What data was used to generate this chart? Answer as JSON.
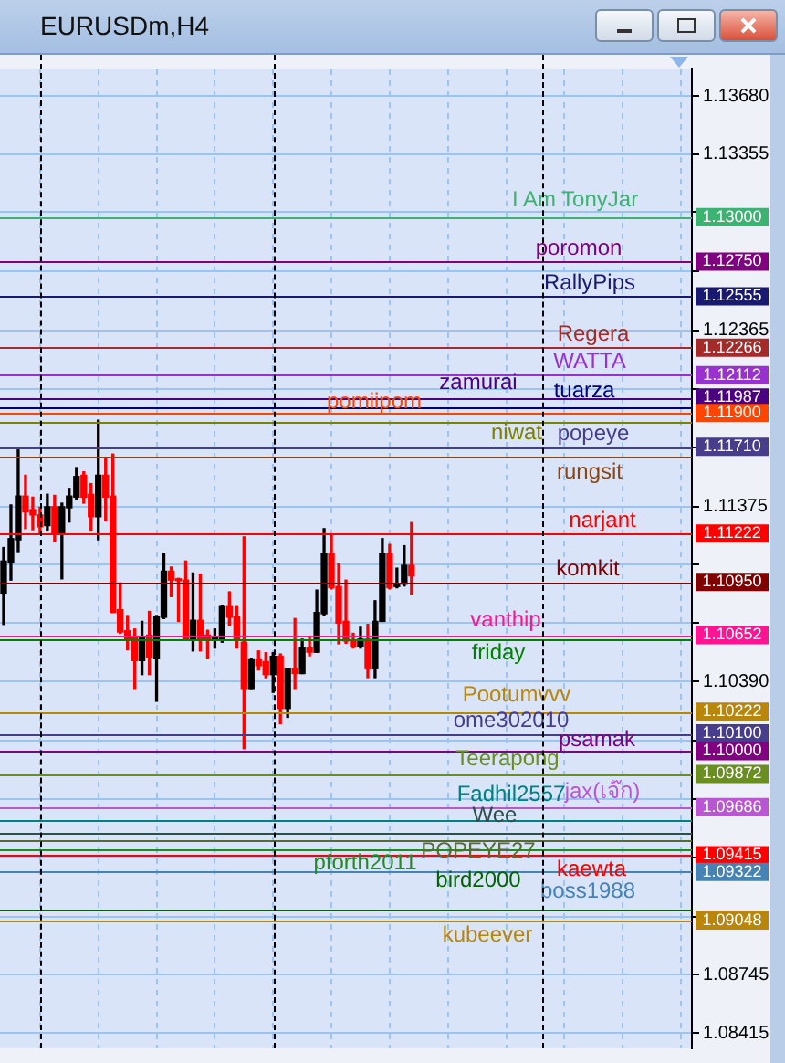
{
  "chart_data": {
    "type": "candlestick",
    "title": "EURUSDm,H4",
    "categories": [
      null,
      null,
      null,
      null,
      null,
      null,
      null,
      null,
      null,
      null,
      null,
      null,
      null,
      null,
      null,
      null,
      null,
      null,
      null,
      null,
      null,
      null,
      null,
      null,
      null,
      null,
      null,
      null,
      null,
      null,
      null,
      null,
      null,
      null,
      null,
      null,
      null,
      null,
      null,
      null,
      null,
      null,
      null,
      null,
      null,
      null,
      null,
      null,
      null,
      null,
      null,
      null,
      null,
      null,
      null,
      null,
      null,
      null,
      null,
      null,
      null,
      null,
      null,
      null,
      null,
      null,
      null,
      null,
      null,
      null,
      null,
      null,
      null,
      null,
      null,
      null,
      null,
      null,
      null,
      null,
      null,
      null,
      null,
      null,
      null,
      null,
      null,
      null,
      null,
      null,
      null,
      null,
      null,
      null,
      null
    ],
    "ohlc": [
      [
        1.10888,
        1.11144,
        1.10712,
        1.11068
      ],
      [
        1.11061,
        1.11383,
        1.10961,
        1.11194
      ],
      [
        1.11187,
        1.11692,
        1.11121,
        1.11433
      ],
      [
        1.11433,
        1.1155,
        1.1125,
        1.11344
      ],
      [
        1.11357,
        1.11427,
        1.11244,
        1.11327
      ],
      [
        1.11327,
        1.1137,
        1.11227,
        1.1126
      ],
      [
        1.11267,
        1.11443,
        1.11237,
        1.11373
      ],
      [
        1.11373,
        1.11437,
        1.11177,
        1.11227
      ],
      [
        1.11227,
        1.11393,
        1.10968,
        1.11373
      ],
      [
        1.11367,
        1.11476,
        1.11287,
        1.11433
      ],
      [
        1.11427,
        1.11593,
        1.11417,
        1.11543
      ],
      [
        1.1155,
        1.11569,
        1.11393,
        1.11427
      ],
      [
        1.11443,
        1.11503,
        1.11237,
        1.11317
      ],
      [
        1.11317,
        1.11859,
        1.11187,
        1.1155
      ],
      [
        1.1155,
        1.11643,
        1.11294,
        1.11427
      ],
      [
        1.11433,
        1.11669,
        1.10779,
        1.10779
      ],
      [
        1.10795,
        1.10945,
        1.10662,
        1.10669
      ],
      [
        1.10676,
        1.10762,
        1.10569,
        1.10626
      ],
      [
        1.10646,
        1.10686,
        1.10347,
        1.10509
      ],
      [
        1.10509,
        1.10729,
        1.1043,
        1.10646
      ],
      [
        1.10652,
        1.10785,
        1.1043,
        1.10526
      ],
      [
        1.10519,
        1.10762,
        1.1028,
        1.10755
      ],
      [
        1.10752,
        1.11111,
        1.10745,
        1.11011
      ],
      [
        1.11011,
        1.11034,
        1.10868,
        1.10961
      ],
      [
        1.10968,
        1.10971,
        1.10729,
        1.10958
      ],
      [
        1.10961,
        1.11068,
        1.10629,
        1.10629
      ],
      [
        1.10629,
        1.11001,
        1.10563,
        1.10735
      ],
      [
        1.10735,
        1.10995,
        1.10563,
        1.10629
      ],
      [
        1.10652,
        1.10679,
        1.10519,
        1.10629
      ],
      [
        1.10629,
        1.10686,
        1.10579,
        1.10639
      ],
      [
        1.10629,
        1.10818,
        1.10612,
        1.10812
      ],
      [
        1.10812,
        1.10895,
        1.10706,
        1.10752
      ],
      [
        1.10755,
        1.10812,
        1.10579,
        1.10629
      ],
      [
        1.10612,
        1.11204,
        1.10014,
        1.10347
      ],
      [
        1.10347,
        1.10519,
        1.10347,
        1.10513
      ],
      [
        1.10513,
        1.10563,
        1.10456,
        1.1048
      ],
      [
        1.10503,
        1.10553,
        1.10413,
        1.1043
      ],
      [
        1.1043,
        1.10553,
        1.1033,
        1.10533
      ],
      [
        1.10533,
        1.10546,
        1.10154,
        1.1024
      ],
      [
        1.1024,
        1.10463,
        1.1019,
        1.10463
      ],
      [
        1.10463,
        1.10745,
        1.10347,
        1.10436
      ],
      [
        1.10436,
        1.10629,
        1.10436,
        1.10579
      ],
      [
        1.10579,
        1.10646,
        1.10536,
        1.10556
      ],
      [
        1.10556,
        1.10905,
        1.10556,
        1.10779
      ],
      [
        1.10772,
        1.1125,
        1.10762,
        1.11111
      ],
      [
        1.11111,
        1.11217,
        1.10912,
        1.10918
      ],
      [
        1.10925,
        1.11051,
        1.10603,
        1.10719
      ],
      [
        1.10729,
        1.10961,
        1.10606,
        1.10619
      ],
      [
        1.10619,
        1.10662,
        1.10579,
        1.10586
      ],
      [
        1.10586,
        1.10696,
        1.10579,
        1.10629
      ],
      [
        1.10629,
        1.10712,
        1.10413,
        1.10463
      ],
      [
        1.10463,
        1.10845,
        1.10413,
        1.10729
      ],
      [
        1.10729,
        1.11194,
        1.10729,
        1.11111
      ],
      [
        1.11111,
        1.11161,
        1.10912,
        1.10918
      ],
      [
        1.10925,
        1.11028,
        1.10918,
        1.10938
      ],
      [
        1.10938,
        1.11154,
        1.10928,
        1.11044
      ],
      [
        1.11044,
        1.11284,
        1.10878,
        1.10985
      ],
      null,
      null,
      null,
      null,
      null,
      null,
      null,
      null,
      null,
      null,
      null,
      null,
      null,
      null,
      null,
      null,
      null,
      null,
      null,
      null,
      null,
      null,
      null,
      null,
      null,
      null,
      null,
      null,
      null,
      null,
      null,
      null,
      null,
      null,
      null,
      null,
      null,
      null
    ],
    "colors": [
      "#000000",
      "#000000",
      "#000000",
      "#ff0000",
      "#ff0000",
      "#ff0000",
      "#000000",
      "#ff0000",
      "#000000",
      "#000000",
      "#000000",
      "#ff0000",
      "#ff0000",
      "#000000",
      "#ff0000",
      "#ff0000",
      "#ff0000",
      "#ff0000",
      "#ff0000",
      "#000000",
      "#ff0000",
      "#000000",
      "#000000",
      "#ff0000",
      "#ff0000",
      "#ff0000",
      "#000000",
      "#ff0000",
      "#ff0000",
      "#000000",
      "#000000",
      "#ff0000",
      "#ff0000",
      "#ff0000",
      "#000000",
      "#ff0000",
      "#ff0000",
      "#000000",
      "#ff0000",
      "#000000",
      "#ff0000",
      "#000000",
      "#ff0000",
      "#000000",
      "#000000",
      "#ff0000",
      "#ff0000",
      "#ff0000",
      "#ff0000",
      "#000000",
      "#ff0000",
      "#000000",
      "#000000",
      "#ff0000",
      "#000000",
      "#000000",
      "#ff0000",
      null,
      null,
      null,
      null,
      null,
      null,
      null,
      null,
      null,
      null,
      null,
      null,
      null,
      null,
      null,
      null,
      null,
      null,
      null,
      null,
      null,
      null,
      null,
      null,
      null,
      null,
      null,
      null,
      null,
      null,
      null,
      null,
      null,
      null,
      null,
      null,
      null,
      null
    ],
    "annotations": [
      "1.13000",
      "1.12750",
      "1.12555",
      "1.12266",
      "1.12112",
      "1.11987",
      "1.11900",
      "1.11710",
      "1.11222",
      "1.10950",
      "1.10652",
      "1.10222",
      "1.10100",
      "1.10000",
      "1.09872",
      "1.09686",
      "1.09415",
      "1.09322",
      "1.09048"
    ],
    "ylim": [
      1.0833,
      1.1383
    ],
    "yticks": [
      {
        "value": 1.1368,
        "label": "1.13680"
      },
      1.13355,
      {
        "value": 1.1303,
        "label": null
      },
      {
        "value": 1.12695,
        "label": null
      },
      1.12365,
      {
        "value": 1.12035,
        "label": null
      },
      {
        "value": 1.11705,
        "label": null
      },
      1.11375,
      {
        "value": 1.1105,
        "label": null
      },
      {
        "value": 1.1072,
        "label": null
      },
      {
        "value": 1.1039,
        "label": "1.10390"
      },
      {
        "value": 1.1006,
        "label": null
      },
      {
        "value": 1.0973,
        "label": null
      },
      {
        "value": 1.094,
        "label": null
      },
      {
        "value": 1.0907,
        "label": null
      },
      1.08745,
      1.08415
    ],
    "grid": true,
    "legend": false,
    "tick_labels": "y",
    "ref_lines": [
      {
        "axis": "y",
        "value": 1.13,
        "label": "I Am TonyJar",
        "color": "#3cb371"
      },
      {
        "axis": "y",
        "value": 1.1275,
        "label": "poromon",
        "color": "#800080"
      },
      {
        "axis": "y",
        "value": 1.12555,
        "label": "RallyPips",
        "color": "#191970"
      },
      {
        "axis": "y",
        "value": 1.12266,
        "label": "Regera",
        "color": "#a52a2a"
      },
      {
        "axis": "y",
        "value": 1.12112,
        "label": "WATTA",
        "color": "#9932cc"
      },
      {
        "axis": "y",
        "value": 1.11987,
        "label": "zamurai",
        "color": "#4b0082"
      },
      {
        "axis": "y",
        "value": 1.1193,
        "label": "tuarza",
        "color": "#000080"
      },
      {
        "axis": "y",
        "value": 1.119,
        "label": "pomiipom",
        "color": "#ff4500"
      },
      {
        "axis": "y",
        "value": 1.1185,
        "label": "niwat",
        "color": "#808000"
      },
      {
        "axis": "y",
        "value": 1.1171,
        "label": "popeye",
        "color": "#483d8b"
      },
      {
        "axis": "y",
        "value": 1.1165,
        "label": "rungsit",
        "color": "#8b4513"
      },
      {
        "axis": "y",
        "value": 1.11222,
        "label": "narjant",
        "color": "#ff0000"
      },
      {
        "axis": "y",
        "value": 1.1095,
        "label": "komkit",
        "color": "#800000"
      },
      {
        "axis": "y",
        "value": 1.10652,
        "label": "vanthip",
        "color": "#ff1493"
      },
      {
        "axis": "y",
        "value": 1.1063,
        "label": "friday",
        "color": "#008000"
      },
      {
        "axis": "y",
        "value": 1.10222,
        "label": "Pootumvvv",
        "color": "#b8860b"
      },
      {
        "axis": "y",
        "value": 1.101,
        "label": "ome302010",
        "color": "#483d8b"
      },
      {
        "axis": "y",
        "value": 1.1,
        "label": "psamak",
        "color": "#800080"
      },
      {
        "axis": "y",
        "value": 1.09872,
        "label": "Teerapong",
        "color": "#6b8e23"
      },
      {
        "axis": "y",
        "value": 1.09686,
        "label": "jax(เจ๊ก)",
        "color": "#ba55d3"
      },
      {
        "axis": "y",
        "value": 1.0961,
        "label": "Fadhil2557",
        "color": "#008080"
      },
      {
        "axis": "y",
        "value": 1.09542,
        "label": "Wee",
        "color": "#2f4f4f"
      },
      {
        "axis": "y",
        "value": 1.095,
        "label": "POPEYE27",
        "color": "#556b2f"
      },
      {
        "axis": "y",
        "value": 1.09451,
        "label": "pforth2011",
        "color": "#228b22"
      },
      {
        "axis": "y",
        "value": 1.09415,
        "label": "kaewta",
        "color": "#ff0000"
      },
      {
        "axis": "y",
        "value": 1.09322,
        "label": "boss1988",
        "color": "#4682b4"
      },
      {
        "axis": "y",
        "value": 1.09108,
        "label": "bird2000",
        "color": "#006400"
      },
      {
        "axis": "y",
        "value": 1.09048,
        "label": "kubeever",
        "color": "#b8860b"
      }
    ]
  }
}
